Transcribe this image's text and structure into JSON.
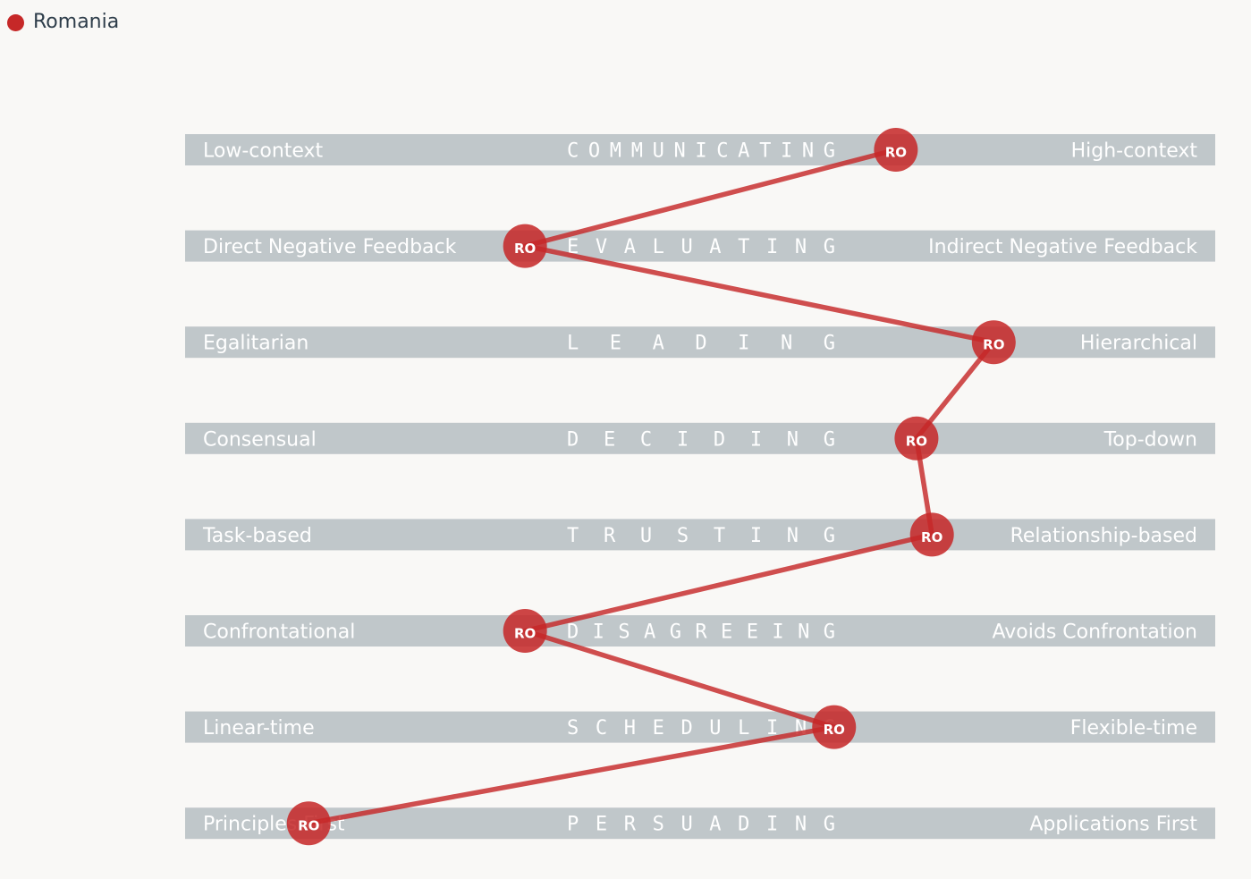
{
  "legend": {
    "label": "Romania",
    "color": "#c62828"
  },
  "chart_data": {
    "type": "line",
    "scale": [
      0,
      100
    ],
    "marker_label": "RO",
    "marker_color": "#c62828",
    "band_color": "#c0c7ca",
    "series": [
      {
        "name": "Romania",
        "points": [
          {
            "dimension": "COMMUNICATING",
            "left": "Low-context",
            "right": "High-context",
            "value": 69
          },
          {
            "dimension": "EVALUATING",
            "left": "Direct Negative Feedback",
            "right": "Indirect Negative Feedback",
            "value": 33
          },
          {
            "dimension": "LEADING",
            "left": "Egalitarian",
            "right": "Hierarchical",
            "value": 78.5
          },
          {
            "dimension": "DECIDING",
            "left": "Consensual",
            "right": "Top-down",
            "value": 71
          },
          {
            "dimension": "TRUSTING",
            "left": "Task-based",
            "right": "Relationship-based",
            "value": 72.5
          },
          {
            "dimension": "DISAGREEING",
            "left": "Confrontational",
            "right": "Avoids Confrontation",
            "value": 33
          },
          {
            "dimension": "SCHEDULING",
            "left": "Linear-time",
            "right": "Flexible-time",
            "value": 63
          },
          {
            "dimension": "PERSUADING",
            "left": "Principles First",
            "right": "Applications First",
            "value": 12
          }
        ]
      }
    ]
  }
}
